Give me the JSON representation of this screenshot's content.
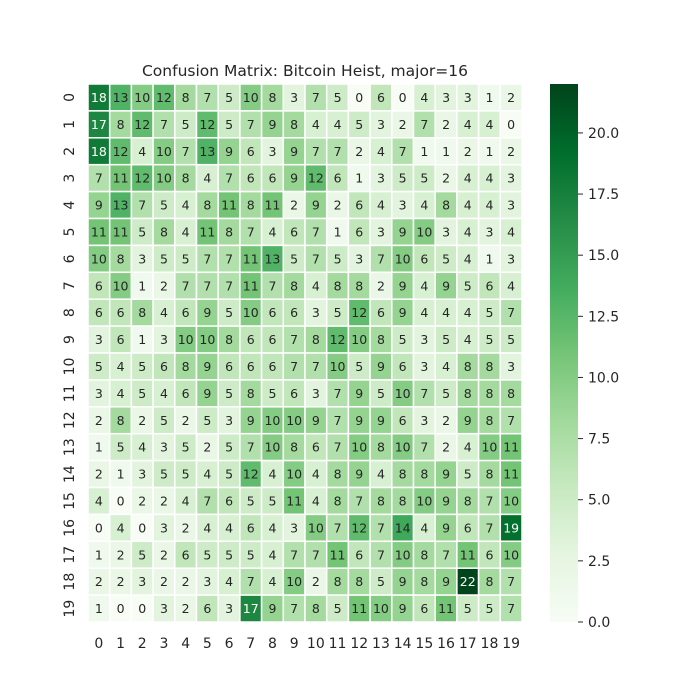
{
  "chart_data": {
    "type": "heatmap",
    "title": "Confusion Matrix: Bitcoin Heist, major=16",
    "xlabel": "",
    "ylabel": "",
    "x_labels": [
      "0",
      "1",
      "2",
      "3",
      "4",
      "5",
      "6",
      "7",
      "8",
      "9",
      "10",
      "11",
      "12",
      "13",
      "14",
      "15",
      "16",
      "17",
      "18",
      "19"
    ],
    "y_labels": [
      "0",
      "1",
      "2",
      "3",
      "4",
      "5",
      "6",
      "7",
      "8",
      "9",
      "10",
      "11",
      "12",
      "13",
      "14",
      "15",
      "16",
      "17",
      "18",
      "19"
    ],
    "matrix": [
      [
        18,
        13,
        10,
        12,
        8,
        7,
        5,
        10,
        8,
        3,
        7,
        5,
        0,
        6,
        0,
        4,
        3,
        3,
        1,
        2
      ],
      [
        17,
        8,
        12,
        7,
        5,
        12,
        5,
        7,
        9,
        8,
        4,
        4,
        5,
        3,
        2,
        7,
        2,
        4,
        4,
        0
      ],
      [
        18,
        12,
        4,
        10,
        7,
        13,
        9,
        6,
        3,
        9,
        7,
        7,
        2,
        4,
        7,
        1,
        1,
        2,
        1,
        2
      ],
      [
        7,
        11,
        12,
        10,
        8,
        4,
        7,
        6,
        6,
        9,
        12,
        6,
        1,
        3,
        5,
        5,
        2,
        4,
        4,
        3
      ],
      [
        9,
        13,
        7,
        5,
        4,
        8,
        11,
        8,
        11,
        2,
        9,
        2,
        6,
        4,
        3,
        4,
        8,
        4,
        4,
        3
      ],
      [
        11,
        11,
        5,
        8,
        4,
        11,
        8,
        7,
        4,
        6,
        7,
        1,
        6,
        3,
        9,
        10,
        3,
        4,
        3,
        4
      ],
      [
        10,
        8,
        3,
        5,
        5,
        7,
        7,
        11,
        13,
        5,
        7,
        5,
        3,
        7,
        10,
        6,
        5,
        4,
        1,
        3
      ],
      [
        6,
        10,
        1,
        2,
        7,
        7,
        7,
        11,
        7,
        8,
        4,
        8,
        8,
        2,
        9,
        4,
        9,
        5,
        6,
        4
      ],
      [
        6,
        6,
        8,
        4,
        6,
        9,
        5,
        10,
        6,
        6,
        3,
        5,
        12,
        6,
        9,
        4,
        4,
        4,
        5,
        7
      ],
      [
        3,
        6,
        1,
        3,
        10,
        10,
        8,
        6,
        6,
        7,
        8,
        12,
        10,
        8,
        5,
        3,
        5,
        4,
        5,
        5
      ],
      [
        5,
        4,
        5,
        6,
        8,
        9,
        6,
        6,
        6,
        7,
        7,
        10,
        5,
        9,
        6,
        3,
        4,
        8,
        8,
        3
      ],
      [
        3,
        4,
        5,
        4,
        6,
        9,
        5,
        8,
        5,
        6,
        3,
        7,
        9,
        5,
        10,
        7,
        5,
        8,
        8,
        8
      ],
      [
        2,
        8,
        2,
        5,
        2,
        5,
        3,
        9,
        10,
        10,
        9,
        7,
        9,
        9,
        6,
        3,
        2,
        9,
        8,
        7
      ],
      [
        1,
        5,
        4,
        3,
        5,
        2,
        5,
        7,
        10,
        8,
        6,
        7,
        10,
        8,
        10,
        7,
        2,
        4,
        10,
        11
      ],
      [
        2,
        1,
        3,
        5,
        5,
        4,
        5,
        12,
        4,
        10,
        4,
        8,
        9,
        4,
        8,
        8,
        9,
        5,
        8,
        11
      ],
      [
        4,
        0,
        2,
        2,
        4,
        7,
        6,
        5,
        5,
        11,
        4,
        8,
        7,
        8,
        8,
        10,
        9,
        8,
        7,
        10
      ],
      [
        0,
        4,
        0,
        3,
        2,
        4,
        4,
        6,
        4,
        3,
        10,
        7,
        12,
        7,
        14,
        4,
        9,
        6,
        7,
        19
      ],
      [
        1,
        2,
        5,
        2,
        6,
        5,
        5,
        5,
        4,
        7,
        7,
        11,
        6,
        7,
        10,
        8,
        7,
        11,
        6,
        10
      ],
      [
        2,
        2,
        3,
        2,
        2,
        3,
        4,
        7,
        4,
        10,
        2,
        8,
        8,
        5,
        9,
        8,
        9,
        22,
        8,
        7
      ],
      [
        1,
        0,
        0,
        3,
        2,
        6,
        3,
        17,
        9,
        7,
        8,
        5,
        11,
        10,
        9,
        6,
        11,
        5,
        5,
        7
      ]
    ],
    "vmin": 0,
    "vmax": 22,
    "colormap": "Greens",
    "colorbar_ticks": [
      "0.0",
      "2.5",
      "5.0",
      "7.5",
      "10.0",
      "12.5",
      "15.0",
      "17.5",
      "20.0"
    ],
    "colorbar_tick_values": [
      0,
      2.5,
      5,
      7.5,
      10,
      12.5,
      15,
      17.5,
      20
    ]
  }
}
